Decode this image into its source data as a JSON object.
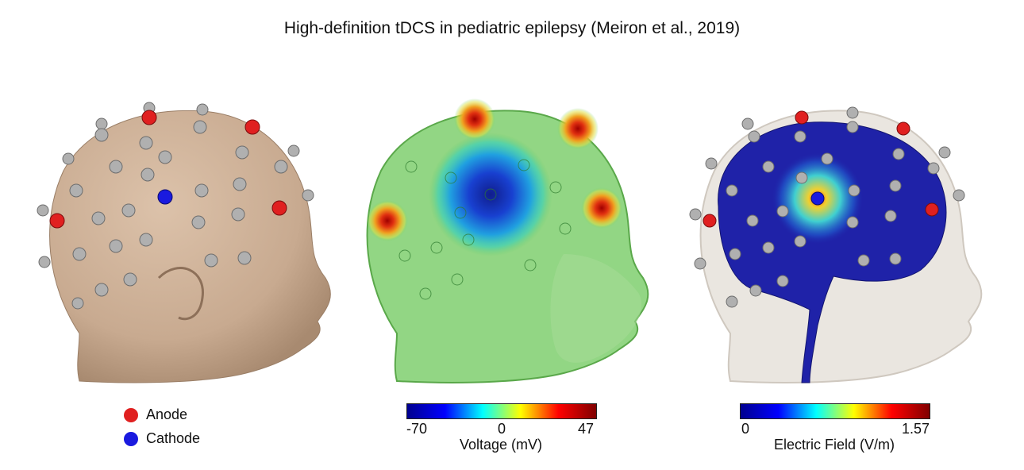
{
  "title": "High-definition tDCS in pediatric epilepsy (Meiron et al., 2019)",
  "legend": {
    "anode": {
      "label": "Anode",
      "color": "#e02020"
    },
    "cathode": {
      "label": "Cathode",
      "color": "#1a1adf"
    }
  },
  "voltage_colorbar": {
    "min_label": "-70",
    "mid_label": "0",
    "max_label": "47",
    "label": "Voltage (mV)",
    "min": -70,
    "max": 47,
    "colormap": "jet"
  },
  "efield_colorbar": {
    "min_label": "0",
    "max_label": "1.57",
    "label": "Electric Field (V/m)",
    "min": 0,
    "max": 1.57,
    "colormap": "jet"
  },
  "colors": {
    "skin": "#c8aa90",
    "electrode": "#a8a8a8",
    "head_ghost": "#e8e3dd",
    "brain": "#1f22a8"
  }
}
